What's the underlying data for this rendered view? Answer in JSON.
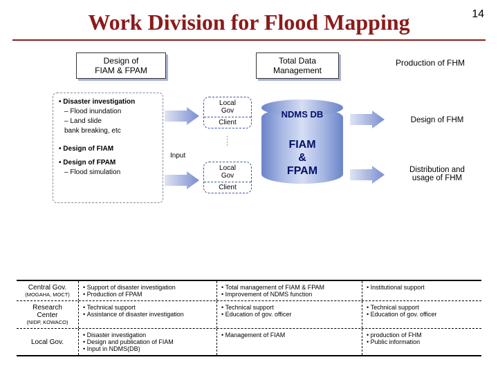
{
  "page_number": "14",
  "title": "Work Division for Flood Mapping",
  "colors": {
    "title": "#8b1a1a",
    "box_shadow": "#aab4d6",
    "cylinder_gradient": [
      "#6a83c8",
      "#a8b8e4",
      "#d6def4"
    ],
    "dash_border": "#3850a0"
  },
  "headers": {
    "design": "Design of\nFIAM & FPAM",
    "total_data": "Total Data\nManagement",
    "production": "Production of FHM"
  },
  "left_box": {
    "bullet1": "• Disaster investigation",
    "sub1": "– Flood inundation",
    "sub2": "– Land slide",
    "sub3": "   bank breaking, etc",
    "bullet2": "• Design of FIAM",
    "bullet3": "• Design of FPAM",
    "sub4": "– Flood simulation"
  },
  "local_gov": {
    "top": "Local\nGov",
    "bottom": "Client"
  },
  "input_label": "Input",
  "cylinder": {
    "top_label": "NDMS DB",
    "mid_label": "FIAM\n&\nFPAM"
  },
  "right": {
    "design_fhm": "Design of FHM",
    "dist_usage": "Distribution and\nusage of FHM"
  },
  "table": {
    "rows": [
      {
        "col0_main": "Central Gov.",
        "col0_sub": "(MOGAHA, MOCT)",
        "col1": "• Support of disaster investigation\n• Production of FPAM",
        "col2": "• Total management of FIAM & FPAM\n• Improvement of NDMS function",
        "col3": "• Institutional support"
      },
      {
        "col0_main": "Research\nCenter",
        "col0_sub": "(NIDP, KOWACO)",
        "col1": "• Technical support\n• Assistance of disaster investigation",
        "col2": "• Technical support\n• Education of gov. officer",
        "col3": "• Technical support\n• Education of gov. officer"
      },
      {
        "col0_main": "Local Gov.",
        "col0_sub": "",
        "col1": "• Disaster investigation\n• Design and publication of FIAM\n• Input in NDMS(DB)",
        "col2": "• Management of FIAM",
        "col3": "• production of FHM\n• Public information"
      }
    ]
  }
}
